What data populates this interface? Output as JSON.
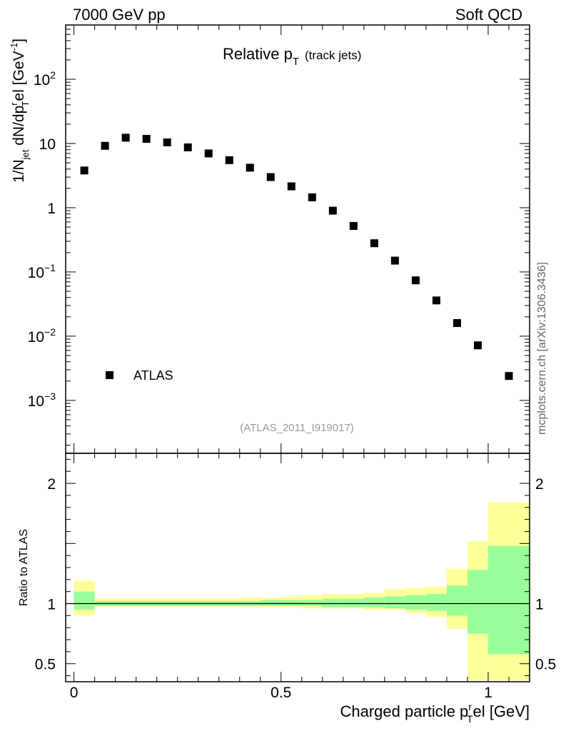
{
  "header": {
    "left": "7000 GeV pp",
    "right": "Soft QCD"
  },
  "side_note": "mcplots.cern.ch [arXiv:1306.3436]",
  "chart_data": [
    {
      "type": "scatter",
      "title": "Relative p",
      "title_sub": "T",
      "title_suffix": "(track jets)",
      "ylabel": "1/N jet dN/dp T rel [GeV -1]",
      "ylabel_parts": {
        "a": "1/N",
        "a_sub": "jet",
        "b": " dN/dp",
        "b_sup": "r",
        "b_sub": "T",
        "c": "el [GeV",
        "c_sup": "-1",
        "d": "]"
      },
      "yscale": "log",
      "ylim": [
        0.00015,
        700
      ],
      "xlim": [
        -0.02,
        1.1
      ],
      "y_tick_labels": [
        {
          "value": 100,
          "base": "10",
          "exp": "2"
        },
        {
          "value": 10,
          "base": "10",
          "exp": ""
        },
        {
          "value": 1,
          "base": "1",
          "exp": ""
        },
        {
          "value": 0.1,
          "base": "10",
          "exp": "−1"
        },
        {
          "value": 0.01,
          "base": "10",
          "exp": "−2"
        },
        {
          "value": 0.001,
          "base": "10",
          "exp": "−3"
        }
      ],
      "legend": {
        "label": "ATLAS",
        "position": "bottom-left"
      },
      "reference": "(ATLAS_2011_I919017)",
      "series": [
        {
          "name": "ATLAS",
          "x": [
            0.025,
            0.075,
            0.125,
            0.175,
            0.225,
            0.275,
            0.325,
            0.375,
            0.425,
            0.475,
            0.525,
            0.575,
            0.625,
            0.675,
            0.725,
            0.775,
            0.825,
            0.875,
            0.925,
            0.975,
            1.05
          ],
          "y": [
            3.8,
            9.2,
            12.3,
            11.8,
            10.4,
            8.7,
            7.0,
            5.5,
            4.2,
            3.0,
            2.15,
            1.45,
            0.9,
            0.52,
            0.28,
            0.15,
            0.074,
            0.036,
            0.016,
            0.0072,
            0.0024
          ]
        }
      ]
    },
    {
      "type": "area",
      "ylabel": "Ratio to ATLAS",
      "xlabel": "Charged particle p",
      "xlabel_sub": "T",
      "xlabel_sup": "r",
      "xlabel_suffix": "el [GeV]",
      "xlim": [
        -0.02,
        1.1
      ],
      "ylim": [
        0.35,
        2.25
      ],
      "x_tick_labels": [
        {
          "value": 0,
          "label": "0"
        },
        {
          "value": 0.5,
          "label": "0.5"
        },
        {
          "value": 1,
          "label": "1"
        }
      ],
      "y_tick_labels": [
        {
          "value": 0.5,
          "label": "0.5"
        },
        {
          "value": 1,
          "label": "1"
        },
        {
          "value": 2,
          "label": "2"
        }
      ],
      "reference_line": 1,
      "colors": {
        "stat": "#99ff99",
        "total": "#ffff99"
      },
      "bins": {
        "edges": [
          0,
          0.05,
          0.1,
          0.15,
          0.2,
          0.25,
          0.3,
          0.35,
          0.4,
          0.45,
          0.5,
          0.55,
          0.6,
          0.65,
          0.7,
          0.75,
          0.8,
          0.85,
          0.9,
          0.95,
          1.0,
          1.1
        ],
        "stat_lo": [
          0.95,
          0.98,
          0.98,
          0.98,
          0.98,
          0.98,
          0.98,
          0.98,
          0.98,
          0.98,
          0.98,
          0.98,
          0.97,
          0.97,
          0.97,
          0.96,
          0.95,
          0.94,
          0.9,
          0.75,
          0.58
        ],
        "stat_hi": [
          1.1,
          1.02,
          1.02,
          1.02,
          1.02,
          1.02,
          1.02,
          1.02,
          1.02,
          1.03,
          1.03,
          1.03,
          1.04,
          1.04,
          1.05,
          1.06,
          1.07,
          1.08,
          1.15,
          1.28,
          1.48
        ],
        "total_lo": [
          0.9,
          0.97,
          0.97,
          0.97,
          0.97,
          0.97,
          0.97,
          0.97,
          0.97,
          0.97,
          0.97,
          0.96,
          0.96,
          0.96,
          0.95,
          0.95,
          0.92,
          0.89,
          0.79,
          0.36,
          0.36
        ],
        "total_hi": [
          1.19,
          1.04,
          1.04,
          1.04,
          1.04,
          1.04,
          1.04,
          1.04,
          1.05,
          1.05,
          1.06,
          1.07,
          1.08,
          1.08,
          1.09,
          1.12,
          1.13,
          1.14,
          1.29,
          1.52,
          1.84
        ]
      }
    }
  ]
}
